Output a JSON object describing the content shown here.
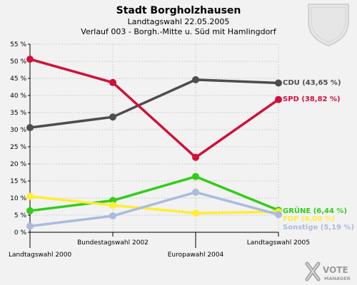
{
  "chart_data": {
    "type": "line",
    "title": "Stadt Borgholzhausen",
    "subtitle": "Landtagswahl 22.05.2005",
    "subtitle2": "Verlauf 003 - Borgh.-Mitte u. Süd mit Hamlingdorf",
    "categories": [
      "Landtagswahl 2000",
      "Bundestagswahl 2002",
      "Europawahl 2004",
      "Landtagswahl 2005"
    ],
    "ylim": [
      0,
      55
    ],
    "yticks": [
      0,
      5,
      10,
      15,
      20,
      25,
      30,
      35,
      40,
      45,
      50,
      55
    ],
    "ytick_labels": [
      "0 %",
      "5 %",
      "10 %",
      "15 %",
      "20 %",
      "25 %",
      "30 %",
      "35 %",
      "40 %",
      "45 %",
      "50 %",
      "55 %"
    ],
    "grid": true,
    "series": [
      {
        "name": "CDU",
        "legend": "CDU (43,65 %)",
        "color": "#4d4d4d",
        "values": [
          30.6,
          33.7,
          44.6,
          43.65
        ]
      },
      {
        "name": "SPD",
        "legend": "SPD (38,82 %)",
        "color": "#d0103a",
        "values": [
          50.6,
          43.8,
          21.9,
          38.82
        ]
      },
      {
        "name": "GRÜNE",
        "legend": "GRÜNE (6,44 %)",
        "color": "#33cc1a",
        "values": [
          6.3,
          9.3,
          16.3,
          6.44
        ]
      },
      {
        "name": "FDP",
        "legend": "FDP (6,00 %)",
        "color": "#ffee33",
        "values": [
          10.5,
          7.9,
          5.6,
          6.0
        ]
      },
      {
        "name": "Sonstige",
        "legend": "Sonstige (5,19 %)",
        "color": "#aabbdd",
        "values": [
          1.8,
          4.8,
          11.7,
          5.19
        ]
      }
    ]
  },
  "branding": {
    "logo_text_1": "VOTE",
    "logo_text_2": "MANAGER"
  }
}
